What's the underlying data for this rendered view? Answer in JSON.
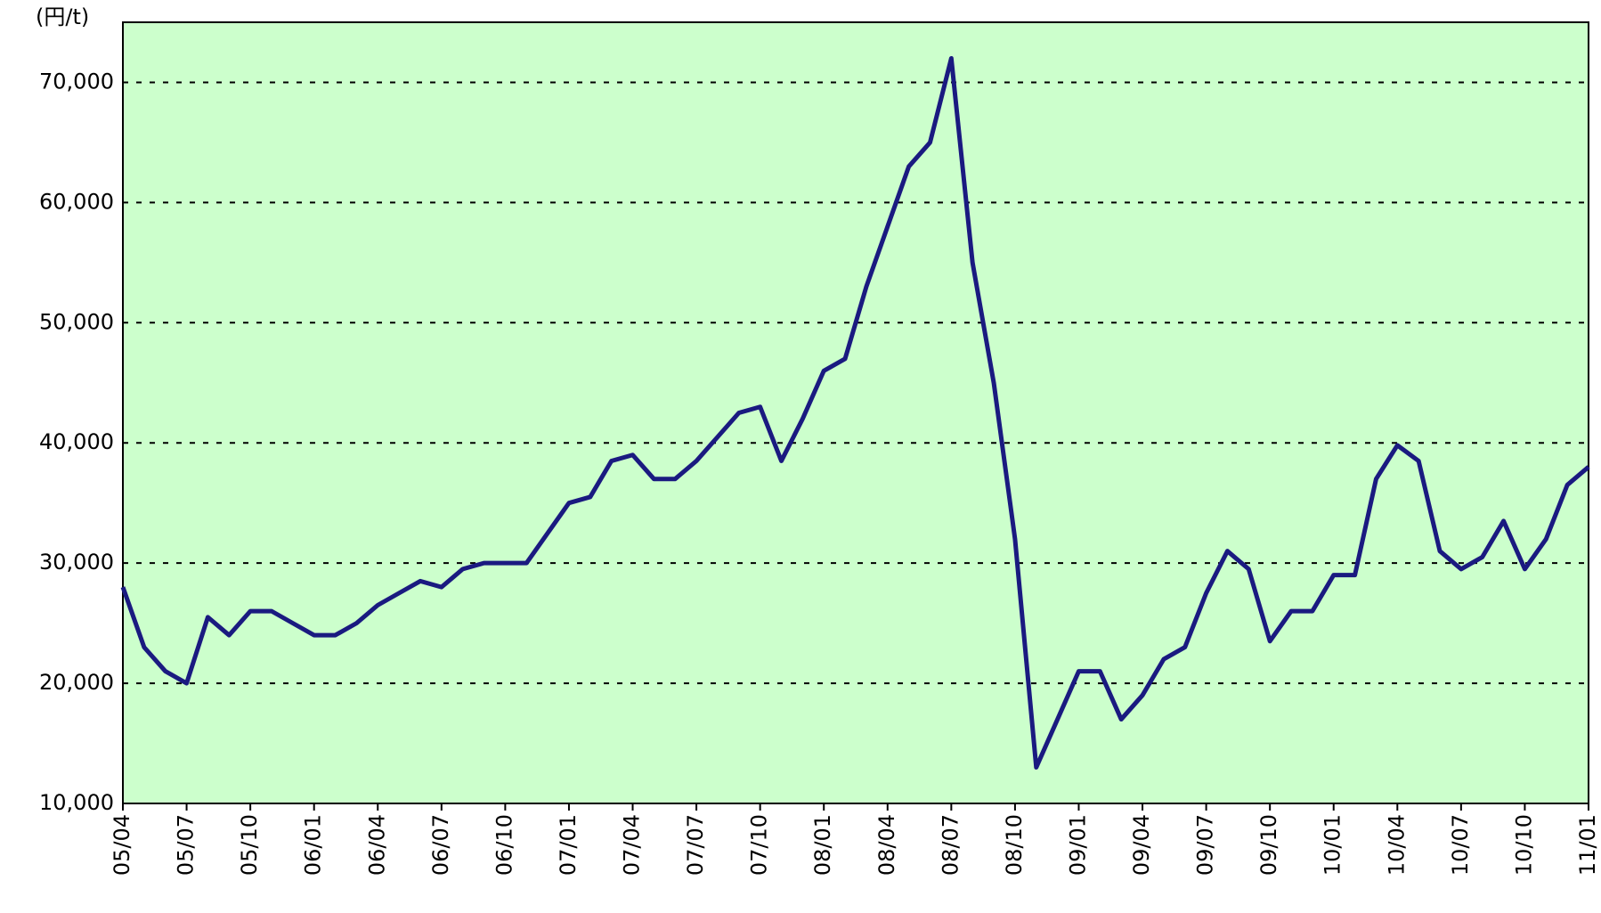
{
  "chart_data": {
    "type": "line",
    "y_unit_label": "(円/t)",
    "categories": [
      "05/04",
      null,
      null,
      "05/07",
      null,
      null,
      "05/10",
      null,
      null,
      "06/01",
      null,
      null,
      "06/04",
      null,
      null,
      "06/07",
      null,
      null,
      "06/10",
      null,
      null,
      "07/01",
      null,
      null,
      "07/04",
      null,
      null,
      "07/07",
      null,
      null,
      "07/10",
      null,
      null,
      "08/01",
      null,
      null,
      "08/04",
      null,
      null,
      "08/07",
      null,
      null,
      "08/10",
      null,
      null,
      "09/01",
      null,
      null,
      "09/04",
      null,
      null,
      "09/07",
      null,
      null,
      "09/10",
      null,
      null,
      "10/01",
      null,
      null,
      "10/04",
      null,
      null,
      "10/07",
      null,
      null,
      "10/10",
      null,
      null,
      "11/01"
    ],
    "values": [
      28000,
      23000,
      21000,
      20000,
      25500,
      24000,
      26000,
      26000,
      25000,
      24000,
      24000,
      25000,
      26500,
      27500,
      28500,
      28000,
      29500,
      30000,
      30000,
      30000,
      32500,
      35000,
      35500,
      38500,
      39000,
      37000,
      37000,
      38500,
      40500,
      42500,
      43000,
      38500,
      42000,
      46000,
      47000,
      53000,
      58000,
      63000,
      65000,
      72000,
      55000,
      45000,
      32000,
      13000,
      17000,
      21000,
      21000,
      17000,
      19000,
      22000,
      23000,
      27500,
      31000,
      29500,
      23500,
      26000,
      26000,
      29000,
      29000,
      37000,
      39800,
      38500,
      31000,
      29500,
      30500,
      33500,
      29500,
      32000,
      36500,
      38000
    ],
    "color": "#1a1a80",
    "background": "#ccffcc",
    "ylim": [
      10000,
      75000
    ],
    "yticks": [
      {
        "value": 10000,
        "label": "10,000"
      },
      {
        "value": 20000,
        "label": "20,000"
      },
      {
        "value": 30000,
        "label": "30,000"
      },
      {
        "value": 40000,
        "label": "40,000"
      },
      {
        "value": 50000,
        "label": "50,000"
      },
      {
        "value": 60000,
        "label": "60,000"
      },
      {
        "value": 70000,
        "label": "70,000"
      }
    ],
    "grid": true
  }
}
